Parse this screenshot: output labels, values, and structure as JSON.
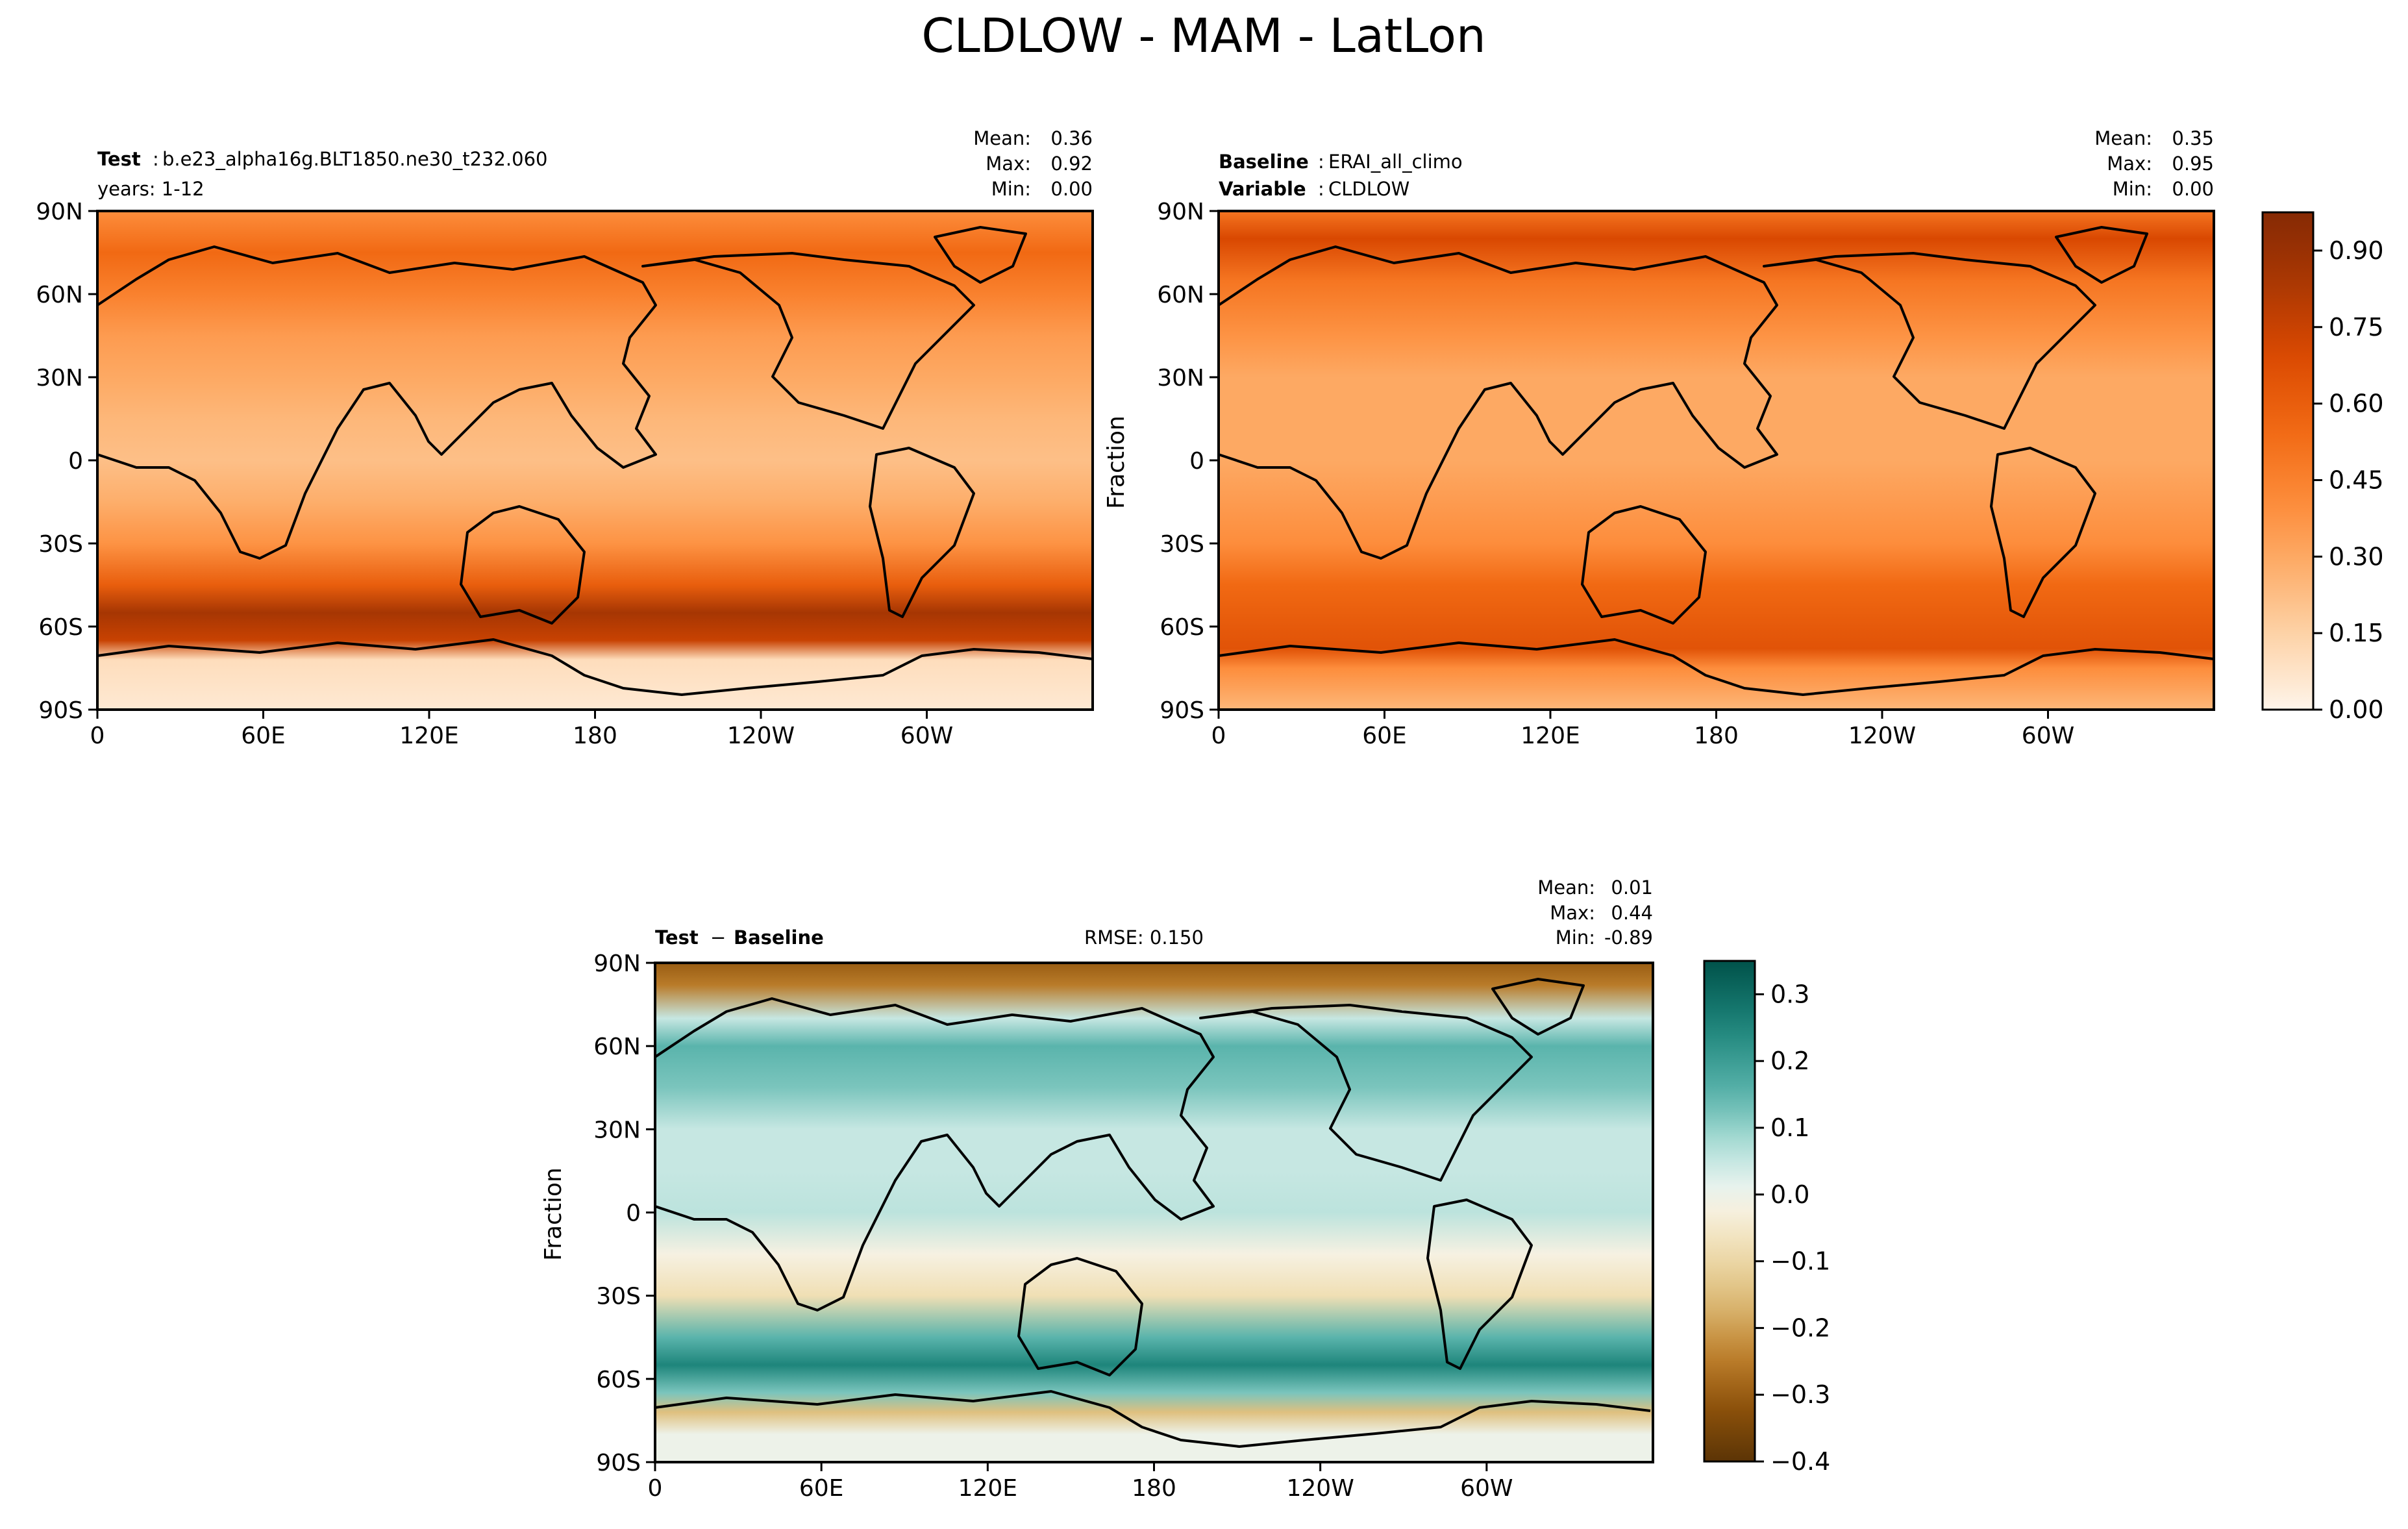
{
  "figure": {
    "title": "CLDLOW - MAM - LatLon"
  },
  "chart_data": [
    {
      "type": "heatmap",
      "panel": "test",
      "label_left": "Test",
      "value_left": "b.e23_alpha16g.BLT1850.ne30_t232.060",
      "line2": "years: 1-12",
      "stats": {
        "mean": "0.36",
        "max": "0.92",
        "min": "0.00"
      },
      "stats_labels": {
        "mean": "Mean:",
        "max": "Max:",
        "min": "Min:"
      },
      "xticks": [
        "0",
        "60E",
        "120E",
        "180",
        "120W",
        "60W"
      ],
      "yticks": [
        "90N",
        "60N",
        "30N",
        "0",
        "30S",
        "60S",
        "90S"
      ],
      "xlim": [
        0,
        360
      ],
      "ylim": [
        -90,
        90
      ],
      "colormap": "Oranges",
      "zonal_profile": [
        [
          90,
          0.4
        ],
        [
          75,
          0.55
        ],
        [
          60,
          0.45
        ],
        [
          45,
          0.35
        ],
        [
          30,
          0.3
        ],
        [
          15,
          0.25
        ],
        [
          0,
          0.22
        ],
        [
          -15,
          0.28
        ],
        [
          -30,
          0.38
        ],
        [
          -45,
          0.6
        ],
        [
          -55,
          0.85
        ],
        [
          -65,
          0.75
        ],
        [
          -72,
          0.1
        ],
        [
          -90,
          0.05
        ]
      ]
    },
    {
      "type": "heatmap",
      "panel": "baseline",
      "label_left": "Baseline",
      "value_left": "ERAI_all_climo",
      "label_left2": "Variable",
      "value_left2": "CLDLOW",
      "ylabel": "Fraction",
      "stats": {
        "mean": "0.35",
        "max": "0.95",
        "min": "0.00"
      },
      "stats_labels": {
        "mean": "Mean:",
        "max": "Max:",
        "min": "Min:"
      },
      "xticks": [
        "0",
        "60E",
        "120E",
        "180",
        "120W",
        "60W"
      ],
      "yticks": [
        "90N",
        "60N",
        "30N",
        "0",
        "30S",
        "60S",
        "90S"
      ],
      "xlim": [
        0,
        360
      ],
      "ylim": [
        -90,
        90
      ],
      "colormap": "Oranges",
      "colorbar_ticks": [
        "0.00",
        "0.15",
        "0.30",
        "0.45",
        "0.60",
        "0.75",
        "0.90"
      ],
      "colorbar_values": [
        0.0,
        0.15,
        0.3,
        0.45,
        0.6,
        0.75,
        0.9
      ],
      "colorbar_range": [
        0.0,
        0.975
      ],
      "zonal_profile": [
        [
          90,
          0.5
        ],
        [
          80,
          0.7
        ],
        [
          65,
          0.5
        ],
        [
          45,
          0.38
        ],
        [
          30,
          0.3
        ],
        [
          15,
          0.3
        ],
        [
          0,
          0.3
        ],
        [
          -15,
          0.35
        ],
        [
          -30,
          0.4
        ],
        [
          -45,
          0.55
        ],
        [
          -60,
          0.62
        ],
        [
          -68,
          0.65
        ],
        [
          -75,
          0.4
        ],
        [
          -90,
          0.25
        ]
      ]
    },
    {
      "type": "heatmap",
      "panel": "difference",
      "label_left": "Test",
      "label_mid": "Baseline",
      "rmse": "RMSE: 0.150",
      "ylabel": "Fraction",
      "stats": {
        "mean": "0.01",
        "max": "0.44",
        "min": "-0.89"
      },
      "stats_labels": {
        "mean": "Mean:",
        "max": "Max:",
        "min": "Min:"
      },
      "xticks": [
        "0",
        "60E",
        "120E",
        "180",
        "120W",
        "60W"
      ],
      "yticks": [
        "90N",
        "60N",
        "30N",
        "0",
        "30S",
        "60S",
        "90S"
      ],
      "xlim": [
        0,
        360
      ],
      "ylim": [
        -90,
        90
      ],
      "colormap": "BrBG",
      "colorbar_ticks": [
        "0.3",
        "0.2",
        "0.1",
        "0.0",
        "−0.1",
        "−0.2",
        "−0.3",
        "−0.4"
      ],
      "colorbar_values": [
        0.3,
        0.2,
        0.1,
        0.0,
        -0.1,
        -0.2,
        -0.3,
        -0.4
      ],
      "colorbar_range": [
        -0.4,
        0.35
      ],
      "zonal_profile": [
        [
          90,
          -0.3
        ],
        [
          82,
          -0.25
        ],
        [
          70,
          0.05
        ],
        [
          60,
          0.15
        ],
        [
          45,
          0.12
        ],
        [
          30,
          0.05
        ],
        [
          15,
          0.05
        ],
        [
          0,
          0.06
        ],
        [
          -15,
          -0.02
        ],
        [
          -30,
          -0.08
        ],
        [
          -45,
          0.15
        ],
        [
          -55,
          0.25
        ],
        [
          -65,
          0.12
        ],
        [
          -72,
          -0.15
        ],
        [
          -80,
          0.0
        ],
        [
          -90,
          0.0
        ]
      ]
    }
  ]
}
